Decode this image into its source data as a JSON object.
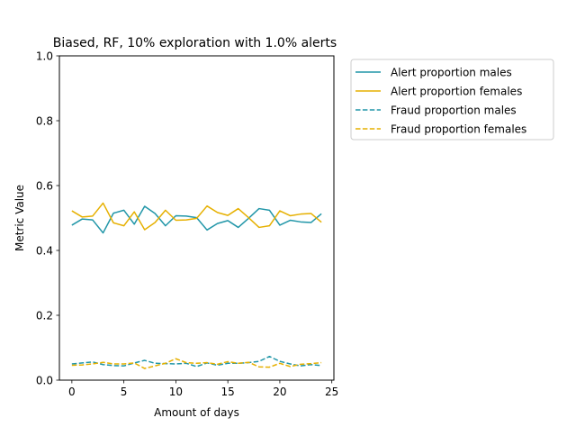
{
  "chart_data": {
    "type": "line",
    "title": "Biased, RF, 10% exploration with 1.0% alerts",
    "xlabel": "Amount of days",
    "ylabel": "Metric Value",
    "xlim": [
      -1.2,
      25.2
    ],
    "ylim": [
      0.0,
      1.0
    ],
    "xticks": [
      0,
      5,
      10,
      15,
      20,
      25
    ],
    "yticks": [
      0.0,
      0.2,
      0.4,
      0.6,
      0.8,
      1.0
    ],
    "xtick_labels": [
      "0",
      "5",
      "10",
      "15",
      "20",
      "25"
    ],
    "ytick_labels": [
      "0.0",
      "0.2",
      "0.4",
      "0.6",
      "0.8",
      "1.0"
    ],
    "grid": false,
    "legend_position": "outside-top-right",
    "x": [
      0,
      1,
      2,
      3,
      4,
      5,
      6,
      7,
      8,
      9,
      10,
      11,
      12,
      13,
      14,
      15,
      16,
      17,
      18,
      19,
      20,
      21,
      22,
      23,
      24
    ],
    "series": [
      {
        "name": "Alert proportion males",
        "color": "#2196a8",
        "style": "solid",
        "values": [
          0.478,
          0.497,
          0.494,
          0.454,
          0.515,
          0.524,
          0.481,
          0.536,
          0.514,
          0.476,
          0.507,
          0.506,
          0.501,
          0.463,
          0.483,
          0.492,
          0.471,
          0.499,
          0.529,
          0.524,
          0.478,
          0.493,
          0.488,
          0.486,
          0.513
        ]
      },
      {
        "name": "Alert proportion females",
        "color": "#e6b000",
        "style": "solid",
        "values": [
          0.522,
          0.503,
          0.506,
          0.546,
          0.485,
          0.476,
          0.519,
          0.464,
          0.486,
          0.524,
          0.493,
          0.494,
          0.499,
          0.537,
          0.517,
          0.508,
          0.529,
          0.501,
          0.471,
          0.476,
          0.522,
          0.507,
          0.512,
          0.514,
          0.487
        ]
      },
      {
        "name": "Fraud proportion males",
        "color": "#2196a8",
        "style": "dashed",
        "values": [
          0.05,
          0.053,
          0.056,
          0.048,
          0.045,
          0.044,
          0.053,
          0.061,
          0.052,
          0.051,
          0.05,
          0.052,
          0.042,
          0.053,
          0.046,
          0.052,
          0.052,
          0.054,
          0.058,
          0.073,
          0.058,
          0.05,
          0.044,
          0.048,
          0.045
        ]
      },
      {
        "name": "Fraud proportion females",
        "color": "#e6b000",
        "style": "dashed",
        "values": [
          0.046,
          0.047,
          0.05,
          0.055,
          0.05,
          0.05,
          0.053,
          0.036,
          0.044,
          0.052,
          0.066,
          0.054,
          0.052,
          0.054,
          0.049,
          0.057,
          0.052,
          0.055,
          0.041,
          0.04,
          0.052,
          0.042,
          0.049,
          0.051,
          0.054
        ]
      }
    ]
  }
}
